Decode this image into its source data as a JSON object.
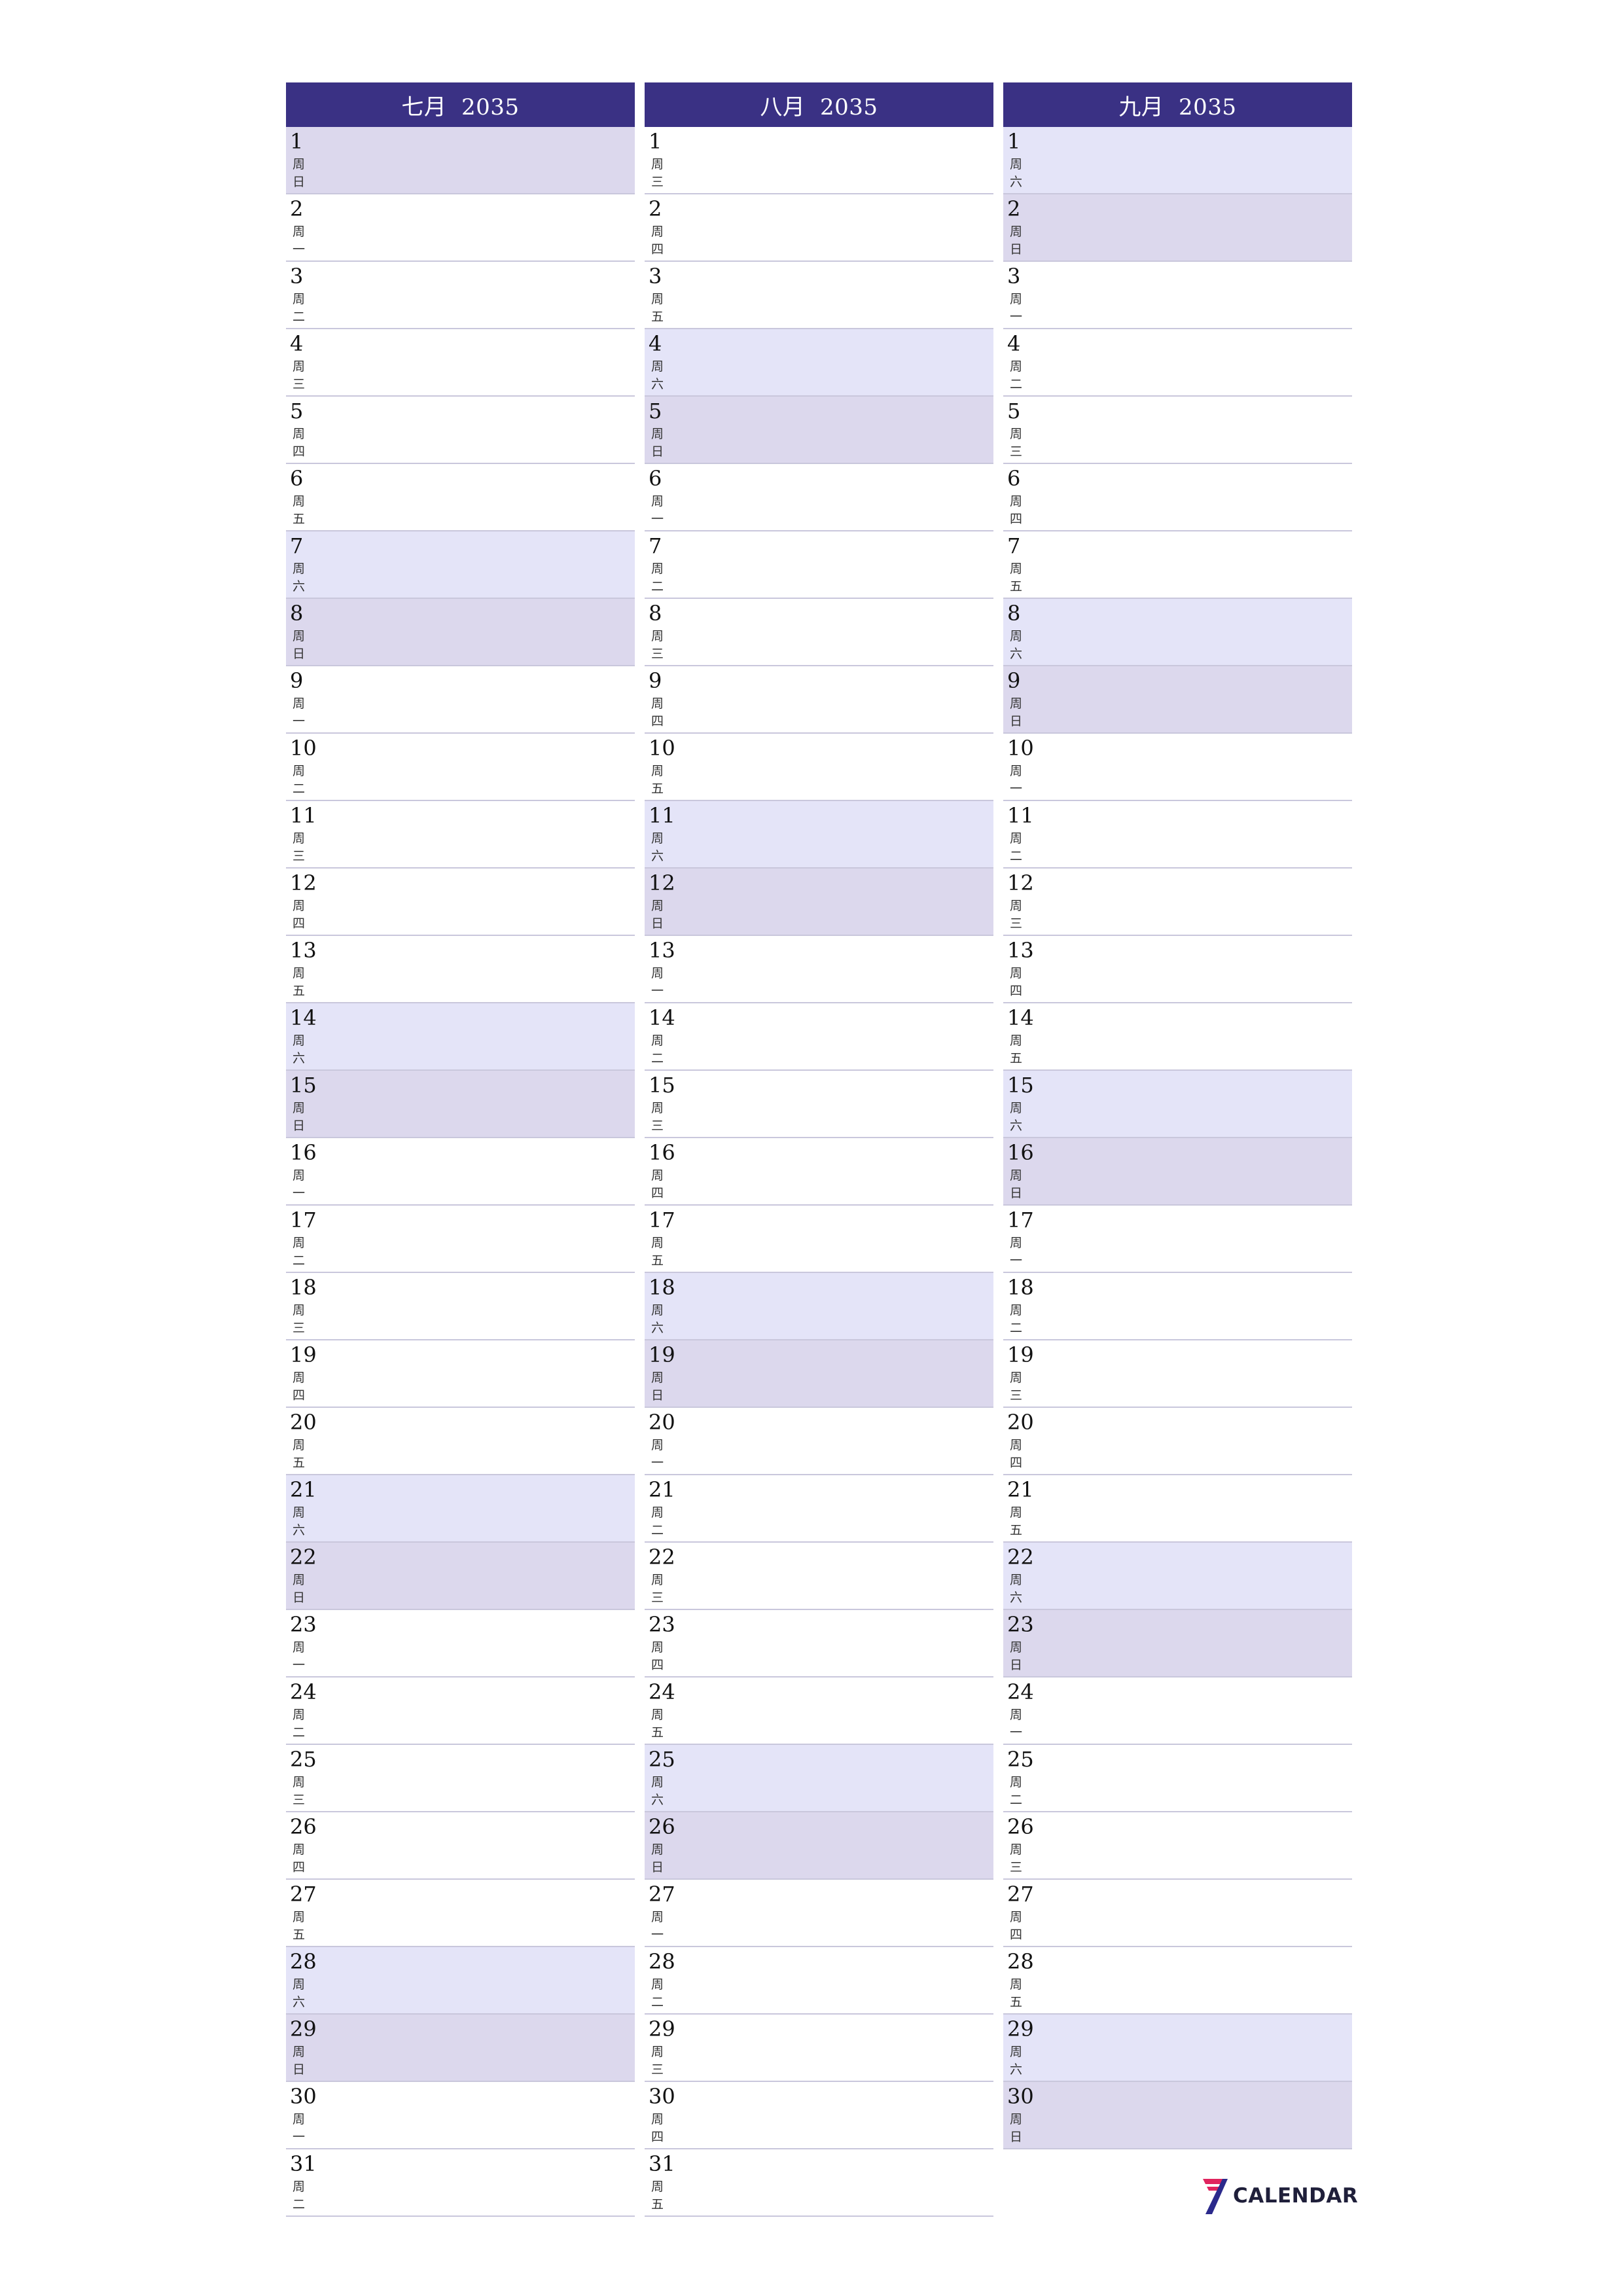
{
  "months": [
    {
      "title": "七月  2035",
      "days": [
        {
          "n": "1",
          "wd": "周日",
          "type": "sun"
        },
        {
          "n": "2",
          "wd": "周一",
          "type": "weekday"
        },
        {
          "n": "3",
          "wd": "周二",
          "type": "weekday"
        },
        {
          "n": "4",
          "wd": "周三",
          "type": "weekday"
        },
        {
          "n": "5",
          "wd": "周四",
          "type": "weekday"
        },
        {
          "n": "6",
          "wd": "周五",
          "type": "weekday"
        },
        {
          "n": "7",
          "wd": "周六",
          "type": "sat"
        },
        {
          "n": "8",
          "wd": "周日",
          "type": "sun"
        },
        {
          "n": "9",
          "wd": "周一",
          "type": "weekday"
        },
        {
          "n": "10",
          "wd": "周二",
          "type": "weekday"
        },
        {
          "n": "11",
          "wd": "周三",
          "type": "weekday"
        },
        {
          "n": "12",
          "wd": "周四",
          "type": "weekday"
        },
        {
          "n": "13",
          "wd": "周五",
          "type": "weekday"
        },
        {
          "n": "14",
          "wd": "周六",
          "type": "sat"
        },
        {
          "n": "15",
          "wd": "周日",
          "type": "sun"
        },
        {
          "n": "16",
          "wd": "周一",
          "type": "weekday"
        },
        {
          "n": "17",
          "wd": "周二",
          "type": "weekday"
        },
        {
          "n": "18",
          "wd": "周三",
          "type": "weekday"
        },
        {
          "n": "19",
          "wd": "周四",
          "type": "weekday"
        },
        {
          "n": "20",
          "wd": "周五",
          "type": "weekday"
        },
        {
          "n": "21",
          "wd": "周六",
          "type": "sat"
        },
        {
          "n": "22",
          "wd": "周日",
          "type": "sun"
        },
        {
          "n": "23",
          "wd": "周一",
          "type": "weekday"
        },
        {
          "n": "24",
          "wd": "周二",
          "type": "weekday"
        },
        {
          "n": "25",
          "wd": "周三",
          "type": "weekday"
        },
        {
          "n": "26",
          "wd": "周四",
          "type": "weekday"
        },
        {
          "n": "27",
          "wd": "周五",
          "type": "weekday"
        },
        {
          "n": "28",
          "wd": "周六",
          "type": "sat"
        },
        {
          "n": "29",
          "wd": "周日",
          "type": "sun"
        },
        {
          "n": "30",
          "wd": "周一",
          "type": "weekday"
        },
        {
          "n": "31",
          "wd": "周二",
          "type": "weekday"
        }
      ]
    },
    {
      "title": "八月  2035",
      "days": [
        {
          "n": "1",
          "wd": "周三",
          "type": "weekday"
        },
        {
          "n": "2",
          "wd": "周四",
          "type": "weekday"
        },
        {
          "n": "3",
          "wd": "周五",
          "type": "weekday"
        },
        {
          "n": "4",
          "wd": "周六",
          "type": "sat"
        },
        {
          "n": "5",
          "wd": "周日",
          "type": "sun"
        },
        {
          "n": "6",
          "wd": "周一",
          "type": "weekday"
        },
        {
          "n": "7",
          "wd": "周二",
          "type": "weekday"
        },
        {
          "n": "8",
          "wd": "周三",
          "type": "weekday"
        },
        {
          "n": "9",
          "wd": "周四",
          "type": "weekday"
        },
        {
          "n": "10",
          "wd": "周五",
          "type": "weekday"
        },
        {
          "n": "11",
          "wd": "周六",
          "type": "sat"
        },
        {
          "n": "12",
          "wd": "周日",
          "type": "sun"
        },
        {
          "n": "13",
          "wd": "周一",
          "type": "weekday"
        },
        {
          "n": "14",
          "wd": "周二",
          "type": "weekday"
        },
        {
          "n": "15",
          "wd": "周三",
          "type": "weekday"
        },
        {
          "n": "16",
          "wd": "周四",
          "type": "weekday"
        },
        {
          "n": "17",
          "wd": "周五",
          "type": "weekday"
        },
        {
          "n": "18",
          "wd": "周六",
          "type": "sat"
        },
        {
          "n": "19",
          "wd": "周日",
          "type": "sun"
        },
        {
          "n": "20",
          "wd": "周一",
          "type": "weekday"
        },
        {
          "n": "21",
          "wd": "周二",
          "type": "weekday"
        },
        {
          "n": "22",
          "wd": "周三",
          "type": "weekday"
        },
        {
          "n": "23",
          "wd": "周四",
          "type": "weekday"
        },
        {
          "n": "24",
          "wd": "周五",
          "type": "weekday"
        },
        {
          "n": "25",
          "wd": "周六",
          "type": "sat"
        },
        {
          "n": "26",
          "wd": "周日",
          "type": "sun"
        },
        {
          "n": "27",
          "wd": "周一",
          "type": "weekday"
        },
        {
          "n": "28",
          "wd": "周二",
          "type": "weekday"
        },
        {
          "n": "29",
          "wd": "周三",
          "type": "weekday"
        },
        {
          "n": "30",
          "wd": "周四",
          "type": "weekday"
        },
        {
          "n": "31",
          "wd": "周五",
          "type": "weekday"
        }
      ]
    },
    {
      "title": "九月  2035",
      "days": [
        {
          "n": "1",
          "wd": "周六",
          "type": "sat"
        },
        {
          "n": "2",
          "wd": "周日",
          "type": "sun"
        },
        {
          "n": "3",
          "wd": "周一",
          "type": "weekday"
        },
        {
          "n": "4",
          "wd": "周二",
          "type": "weekday"
        },
        {
          "n": "5",
          "wd": "周三",
          "type": "weekday"
        },
        {
          "n": "6",
          "wd": "周四",
          "type": "weekday"
        },
        {
          "n": "7",
          "wd": "周五",
          "type": "weekday"
        },
        {
          "n": "8",
          "wd": "周六",
          "type": "sat"
        },
        {
          "n": "9",
          "wd": "周日",
          "type": "sun"
        },
        {
          "n": "10",
          "wd": "周一",
          "type": "weekday"
        },
        {
          "n": "11",
          "wd": "周二",
          "type": "weekday"
        },
        {
          "n": "12",
          "wd": "周三",
          "type": "weekday"
        },
        {
          "n": "13",
          "wd": "周四",
          "type": "weekday"
        },
        {
          "n": "14",
          "wd": "周五",
          "type": "weekday"
        },
        {
          "n": "15",
          "wd": "周六",
          "type": "sat"
        },
        {
          "n": "16",
          "wd": "周日",
          "type": "sun"
        },
        {
          "n": "17",
          "wd": "周一",
          "type": "weekday"
        },
        {
          "n": "18",
          "wd": "周二",
          "type": "weekday"
        },
        {
          "n": "19",
          "wd": "周三",
          "type": "weekday"
        },
        {
          "n": "20",
          "wd": "周四",
          "type": "weekday"
        },
        {
          "n": "21",
          "wd": "周五",
          "type": "weekday"
        },
        {
          "n": "22",
          "wd": "周六",
          "type": "sat"
        },
        {
          "n": "23",
          "wd": "周日",
          "type": "sun"
        },
        {
          "n": "24",
          "wd": "周一",
          "type": "weekday"
        },
        {
          "n": "25",
          "wd": "周二",
          "type": "weekday"
        },
        {
          "n": "26",
          "wd": "周三",
          "type": "weekday"
        },
        {
          "n": "27",
          "wd": "周四",
          "type": "weekday"
        },
        {
          "n": "28",
          "wd": "周五",
          "type": "weekday"
        },
        {
          "n": "29",
          "wd": "周六",
          "type": "sat"
        },
        {
          "n": "30",
          "wd": "周日",
          "type": "sun"
        }
      ]
    }
  ],
  "brand": {
    "text": "CALENDAR",
    "mark": "7"
  },
  "colors": {
    "header_bg": "#3a3184",
    "saturday_bg": "#e4e4f8",
    "sunday_bg": "#dcd8ed",
    "row_divider": "#c9c7dc",
    "brand_red": "#e0245e",
    "brand_navy": "#2b2a8c"
  }
}
